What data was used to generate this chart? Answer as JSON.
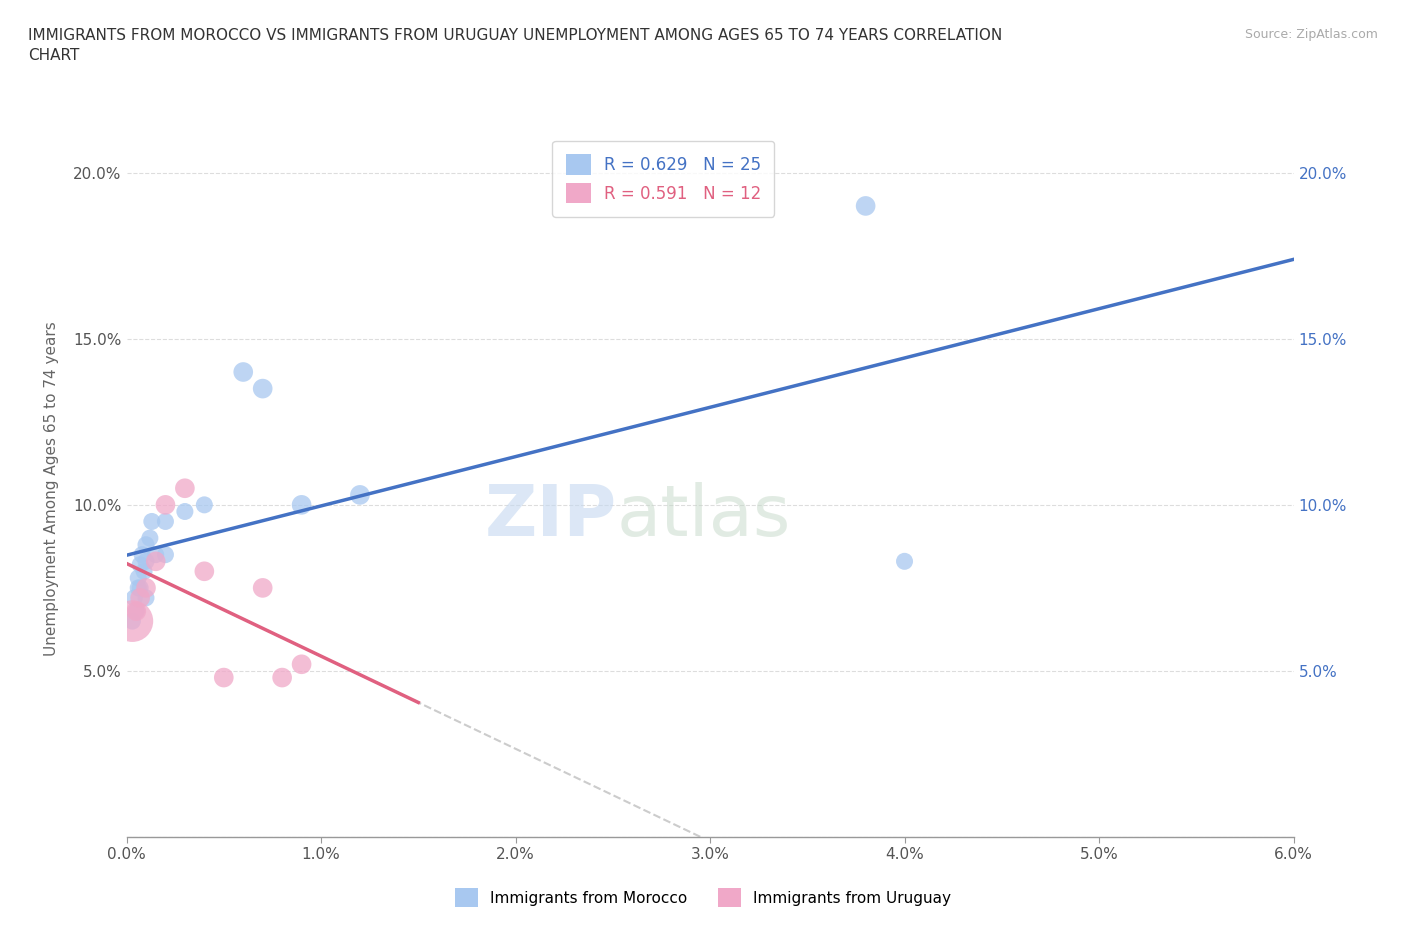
{
  "title": "IMMIGRANTS FROM MOROCCO VS IMMIGRANTS FROM URUGUAY UNEMPLOYMENT AMONG AGES 65 TO 74 YEARS CORRELATION\nCHART",
  "source": "Source: ZipAtlas.com",
  "xlabel": "",
  "ylabel": "Unemployment Among Ages 65 to 74 years",
  "xlim": [
    0.0,
    0.06
  ],
  "ylim": [
    0.0,
    0.21
  ],
  "xticks": [
    0.0,
    0.01,
    0.02,
    0.03,
    0.04,
    0.05,
    0.06
  ],
  "yticks": [
    0.0,
    0.05,
    0.1,
    0.15,
    0.2
  ],
  "xticklabels": [
    "0.0%",
    "1.0%",
    "2.0%",
    "3.0%",
    "4.0%",
    "5.0%",
    "6.0%"
  ],
  "yticklabels": [
    "",
    "5.0%",
    "10.0%",
    "15.0%",
    "20.0%"
  ],
  "morocco_R": 0.629,
  "morocco_N": 25,
  "uruguay_R": 0.591,
  "uruguay_N": 12,
  "morocco_color": "#a8c8f0",
  "uruguay_color": "#f0a8c8",
  "morocco_line_color": "#4472c4",
  "uruguay_line_color": "#e06080",
  "trend_line_color": "#cccccc",
  "morocco_x": [
    0.0003,
    0.0004,
    0.0005,
    0.0006,
    0.0006,
    0.0007,
    0.0007,
    0.0008,
    0.0009,
    0.001,
    0.001,
    0.001,
    0.0012,
    0.0013,
    0.0015,
    0.002,
    0.002,
    0.003,
    0.004,
    0.006,
    0.007,
    0.009,
    0.012,
    0.038,
    0.04
  ],
  "morocco_y": [
    0.065,
    0.072,
    0.068,
    0.075,
    0.078,
    0.082,
    0.075,
    0.085,
    0.08,
    0.083,
    0.088,
    0.072,
    0.09,
    0.095,
    0.085,
    0.095,
    0.085,
    0.098,
    0.1,
    0.14,
    0.135,
    0.1,
    0.103,
    0.19,
    0.083
  ],
  "morocco_sizes": [
    150,
    150,
    150,
    150,
    150,
    150,
    150,
    150,
    150,
    150,
    150,
    150,
    150,
    150,
    150,
    150,
    150,
    150,
    150,
    200,
    200,
    200,
    200,
    200,
    150
  ],
  "uruguay_x": [
    0.0003,
    0.0005,
    0.0007,
    0.001,
    0.0015,
    0.002,
    0.003,
    0.004,
    0.005,
    0.007,
    0.008,
    0.009
  ],
  "uruguay_y": [
    0.065,
    0.068,
    0.072,
    0.075,
    0.083,
    0.1,
    0.105,
    0.08,
    0.048,
    0.075,
    0.048,
    0.052
  ],
  "uruguay_sizes": [
    900,
    200,
    200,
    200,
    200,
    200,
    200,
    200,
    200,
    200,
    200,
    200
  ],
  "watermark_zip": "ZIP",
  "watermark_atlas": "atlas",
  "background_color": "#ffffff"
}
